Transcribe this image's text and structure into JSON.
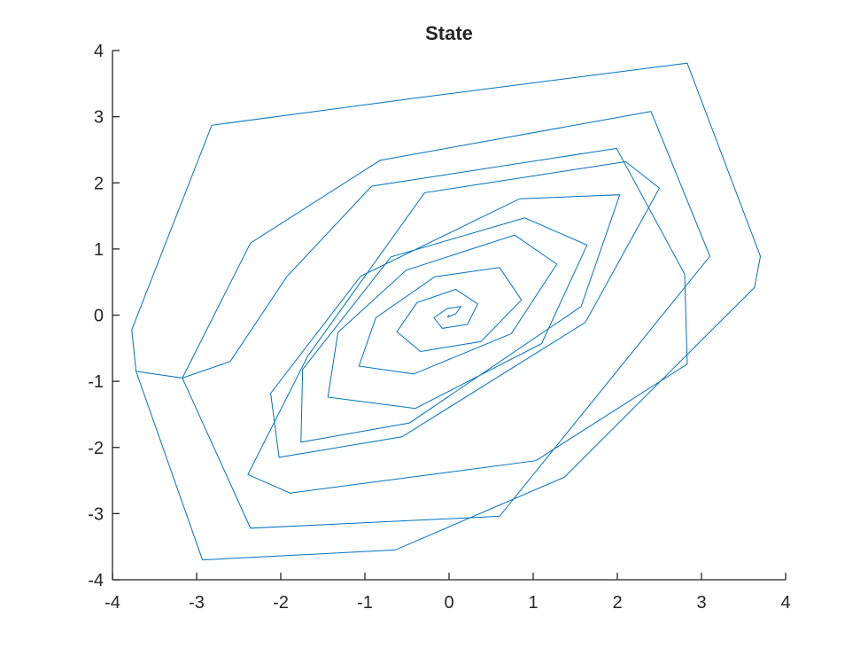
{
  "chart_data": {
    "type": "line",
    "title": "State",
    "xlabel": "",
    "ylabel": "",
    "xlim": [
      -4,
      4
    ],
    "ylim": [
      -4,
      4
    ],
    "xticks": [
      -4,
      -3,
      -2,
      -1,
      0,
      1,
      2,
      3,
      4
    ],
    "yticks": [
      -4,
      -3,
      -2,
      -1,
      0,
      1,
      2,
      3,
      4
    ],
    "xtick_labels": [
      "-4",
      "-3",
      "-2",
      "-1",
      "0",
      "1",
      "2",
      "3",
      "4"
    ],
    "ytick_labels": [
      "-4",
      "-3",
      "-2",
      "-1",
      "0",
      "1",
      "2",
      "3",
      "4"
    ],
    "grid": false,
    "box": false,
    "line_color": "#0072BD",
    "axis_color": "#262626",
    "series": [
      {
        "x": [
          -2.93,
          -3.72,
          -3.77,
          -2.82,
          -0.35,
          2.83,
          3.7,
          3.63,
          1.37,
          -0.64,
          -2.93,
          -3.72,
          -3.17,
          -2.36,
          -0.82,
          2.4,
          3.1,
          0.6,
          -2.36,
          -3.17,
          -2.6,
          -1.93,
          -0.92,
          1.99,
          2.8,
          2.83,
          1.03,
          -1.89,
          -2.39,
          -1.68,
          -0.29,
          2.1,
          2.5,
          1.62,
          -0.56,
          -2.02,
          -2.12,
          -1.05,
          0.84,
          2.03,
          1.57,
          -0.47,
          -1.76,
          -1.74,
          -0.69,
          0.9,
          1.64,
          1.1,
          -0.4,
          -1.44,
          -1.32,
          -0.51,
          0.78,
          1.28,
          0.74,
          -0.42,
          -1.07,
          -0.87,
          -0.17,
          0.6,
          0.86,
          0.38,
          -0.34,
          -0.62,
          -0.38,
          0.08,
          0.34,
          0.22,
          -0.08,
          -0.18,
          -0.02,
          0.14,
          0.08,
          -0.02,
          0.0
        ],
        "y": [
          -3.7,
          -0.85,
          -0.22,
          2.87,
          3.29,
          3.81,
          0.89,
          0.42,
          -2.45,
          -3.55,
          -3.7,
          -0.85,
          -0.95,
          1.09,
          2.34,
          3.08,
          0.89,
          -3.04,
          -3.22,
          -0.95,
          -0.7,
          0.58,
          1.95,
          2.52,
          0.62,
          -0.74,
          -2.2,
          -2.69,
          -2.41,
          -0.62,
          1.85,
          2.32,
          1.92,
          -0.11,
          -1.84,
          -2.15,
          -1.18,
          0.59,
          1.76,
          1.82,
          0.13,
          -1.63,
          -1.92,
          -0.82,
          0.88,
          1.47,
          1.06,
          -0.43,
          -1.41,
          -1.24,
          -0.26,
          0.68,
          1.21,
          0.77,
          -0.28,
          -0.89,
          -0.77,
          -0.04,
          0.58,
          0.72,
          0.23,
          -0.4,
          -0.55,
          -0.25,
          0.19,
          0.39,
          0.17,
          -0.14,
          -0.2,
          -0.04,
          0.1,
          0.13,
          0.02,
          -0.03,
          0.0
        ]
      }
    ]
  }
}
